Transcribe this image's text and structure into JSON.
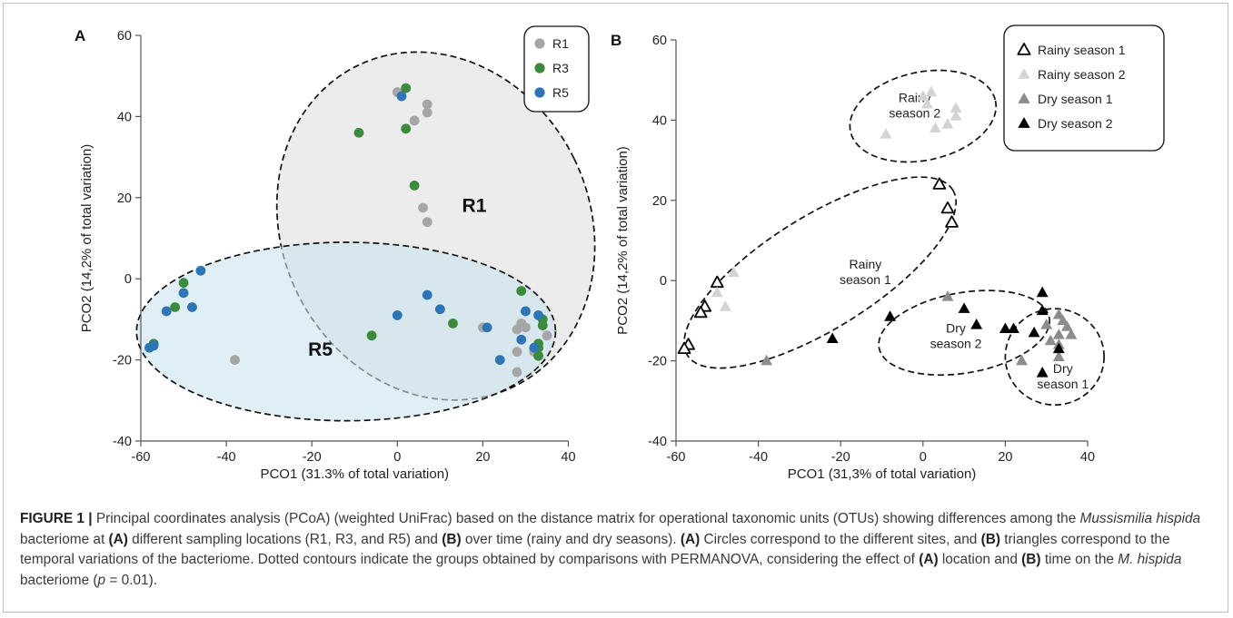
{
  "chart_data": [
    {
      "type": "scatter",
      "panel_label": "A",
      "xlabel": "PCO1 (31.3% of total variation)",
      "ylabel": "PCO2 (14,2% of total variation)",
      "xlim": [
        -60,
        40
      ],
      "ylim": [
        -40,
        60
      ],
      "xticks": [
        -60,
        -40,
        -20,
        0,
        20,
        40
      ],
      "yticks": [
        -40,
        -20,
        0,
        20,
        40,
        60
      ],
      "grid": false,
      "legend": "top-right",
      "series": [
        {
          "name": "R1",
          "color": "#a6a6a6",
          "marker": "circle",
          "x": [
            0,
            4,
            7,
            7,
            6,
            7,
            -38,
            20,
            28,
            28,
            29,
            30,
            33,
            35,
            28,
            32
          ],
          "y": [
            46,
            39,
            43,
            41,
            17.5,
            14,
            -20,
            -12,
            -12.5,
            -23,
            -11,
            -12,
            -17,
            -14,
            -18,
            -18
          ]
        },
        {
          "name": "R3",
          "color": "#3c8a3c",
          "marker": "circle",
          "x": [
            2,
            -9,
            2,
            4,
            -50,
            -52,
            -57,
            -6,
            13,
            29,
            34,
            34,
            33,
            33,
            33
          ],
          "y": [
            47,
            36,
            37,
            23,
            -1,
            -7,
            -16,
            -14,
            -11,
            -3,
            -10,
            -11.5,
            -17,
            -19,
            -16
          ]
        },
        {
          "name": "R5",
          "color": "#2e75b6",
          "marker": "circle",
          "x": [
            1,
            -46,
            -50,
            -48,
            -54,
            -57,
            -58,
            0,
            7,
            10,
            21,
            24,
            30,
            29,
            33,
            32
          ],
          "y": [
            45,
            2,
            -3.5,
            -7,
            -8,
            -16.5,
            -17,
            -9,
            -4,
            -7.5,
            -12,
            -20,
            -8,
            -15,
            -9,
            -17
          ]
        }
      ],
      "groups": [
        {
          "label": "R1",
          "cx": 9,
          "cy": 13,
          "rx": 36,
          "ry": 44,
          "angle": -26,
          "fill": "#e0e0e0"
        },
        {
          "label": "R5",
          "cx": -12,
          "cy": -13,
          "rx": 49,
          "ry": 22,
          "angle": 0,
          "fill": "#cce3ee"
        }
      ]
    },
    {
      "type": "scatter",
      "panel_label": "B",
      "xlabel": "PCO1 (31,3% of total variation)",
      "ylabel": "PCO2 (14,2% of total variation)",
      "xlim": [
        -60,
        40
      ],
      "ylim": [
        -40,
        60
      ],
      "xticks": [
        -60,
        -40,
        -20,
        0,
        20,
        40
      ],
      "yticks": [
        -40,
        -20,
        0,
        20,
        40,
        60
      ],
      "grid": false,
      "legend": "top-right",
      "series": [
        {
          "name": "Rainy season 1",
          "color": "#000000",
          "marker": "triangle-open",
          "x": [
            4,
            6,
            7,
            -50,
            -53,
            -54,
            -57,
            -58
          ],
          "y": [
            24,
            18,
            14.5,
            -0.5,
            -6.5,
            -8,
            -16,
            -17
          ]
        },
        {
          "name": "Rainy season 2",
          "color": "#d4d4d4",
          "marker": "triangle",
          "x": [
            0,
            2,
            1,
            3,
            6,
            8,
            8,
            -9,
            -46,
            -50,
            -48
          ],
          "y": [
            46,
            47,
            44,
            38,
            39,
            43,
            41,
            36.5,
            2,
            -3,
            -6.5
          ]
        },
        {
          "name": "Dry season 1",
          "color": "#8c8c8c",
          "marker": "triangle",
          "x": [
            -38,
            6,
            33,
            34,
            35,
            33,
            36,
            30,
            31,
            33,
            24,
            33
          ],
          "y": [
            -20,
            -4,
            -8.5,
            -10,
            -11.5,
            -13.5,
            -13.5,
            -11,
            -15,
            -16,
            -20,
            -19
          ]
        },
        {
          "name": "Dry season 2",
          "color": "#000000",
          "marker": "triangle",
          "x": [
            -8,
            -22,
            10,
            13,
            20,
            22,
            27,
            29,
            29,
            33,
            29
          ],
          "y": [
            -9,
            -14.5,
            -7,
            -11,
            -12,
            -12,
            -13,
            -3,
            -7.5,
            -17,
            -23
          ]
        }
      ],
      "groups": [
        {
          "label": "Rainy season 2",
          "cx": 0,
          "cy": 41,
          "rx": 18,
          "ry": 11,
          "angle": -12
        },
        {
          "label": "Rainy season 1",
          "cx": -25,
          "cy": 2,
          "rx": 38,
          "ry": 14,
          "angle": -32
        },
        {
          "label": "Dry season 2",
          "cx": 10,
          "cy": -13,
          "rx": 21,
          "ry": 10,
          "angle": -10
        },
        {
          "label": "Dry season 1",
          "cx": 32,
          "cy": -19,
          "rx": 12,
          "ry": 12,
          "angle": 0
        }
      ],
      "group_labels": [
        {
          "lines": [
            "Rainy",
            "season 2"
          ],
          "x": -2,
          "y": 44.5,
          "anchor": "middle"
        },
        {
          "lines": [
            "Rainy",
            "season 1"
          ],
          "x": -14,
          "y": 3,
          "anchor": "middle"
        },
        {
          "lines": [
            "Dry",
            "season 2"
          ],
          "x": 8,
          "y": -13,
          "anchor": "middle"
        },
        {
          "lines": [
            "Dry",
            "season 1"
          ],
          "x": 34,
          "y": -23,
          "anchor": "middle"
        }
      ]
    }
  ],
  "caption": {
    "label": "FIGURE 1 |",
    "t1": " Principal coordinates analysis (PCoA) (weighted UniFrac) based on the distance matrix for operational taxonomic units (OTUs) showing differences among the ",
    "species": "Mussismilia hispida",
    "t2": " bacteriome at ",
    "ref_a": "(A)",
    "t3": " different sampling locations (R1, R3, and R5) and ",
    "ref_b": "(B)",
    "t4": " over time (rainy and dry seasons). ",
    "ref_a2": "(A)",
    "t5": " Circles correspond to the different sites, and ",
    "ref_b2": "(B)",
    "t6": " triangles correspond to the temporal variations of the bacteriome. Dotted contours indicate the groups obtained by comparisons with PERMANOVA, considering the effect of ",
    "ref_a3": "(A)",
    "t7": " location and ",
    "ref_b3": "(B)",
    "t8": " time on the ",
    "species_short": "M. hispida",
    "t9": " bacteriome (",
    "p_sym": "p",
    "t10": " = 0.01)."
  }
}
